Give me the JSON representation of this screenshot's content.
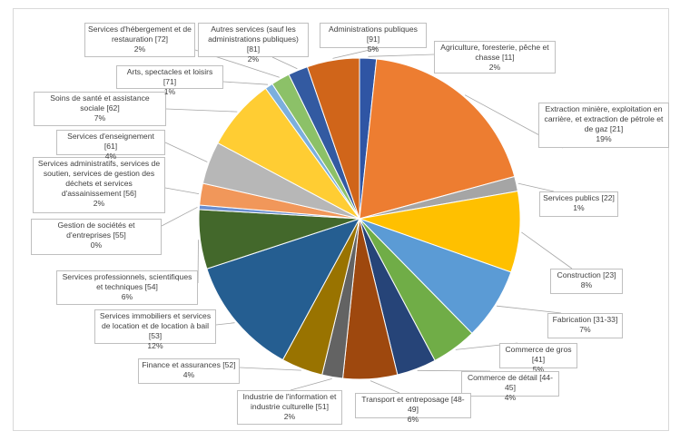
{
  "chart_data": {
    "type": "pie",
    "title": "",
    "start_angle_deg": 0,
    "slices": [
      {
        "name": "Agriculture, foresterie, pêche et chasse [11]",
        "value": 2,
        "pct_label": "2%",
        "color": "#2f55a4"
      },
      {
        "name": "Extraction minière, exploitation en carrière, et extraction de pétrole et de gaz [21]",
        "value": 19,
        "pct_label": "19%",
        "color": "#ed7d31"
      },
      {
        "name": "Services publics [22]",
        "value": 1,
        "pct_label": "1%",
        "color": "#a5a5a5"
      },
      {
        "name": "Construction [23]",
        "value": 8,
        "pct_label": "8%",
        "color": "#ffc000"
      },
      {
        "name": "Fabrication [31-33]",
        "value": 7,
        "pct_label": "7%",
        "color": "#5b9bd5"
      },
      {
        "name": "Commerce de gros [41]",
        "value": 5,
        "pct_label": "5%",
        "color": "#70ad47"
      },
      {
        "name": "Commerce de détail [44-45]",
        "value": 4,
        "pct_label": "4%",
        "color": "#264478"
      },
      {
        "name": "Transport et entreposage [48-49]",
        "value": 6,
        "pct_label": "6%",
        "color": "#9e480e"
      },
      {
        "name": "Industrie de l'information et industrie culturelle [51]",
        "value": 2,
        "pct_label": "2%",
        "color": "#636363"
      },
      {
        "name": "Finance et assurances [52]",
        "value": 4,
        "pct_label": "4%",
        "color": "#997300"
      },
      {
        "name": "Services immobiliers et services de location et de location à bail [53]",
        "value": 12,
        "pct_label": "12%",
        "color": "#255e91"
      },
      {
        "name": "Services professionnels, scientifiques et techniques [54]",
        "value": 6,
        "pct_label": "6%",
        "color": "#43682b"
      },
      {
        "name": "Gestion de sociétés et d'entreprises [55]",
        "value": 0,
        "pct_label": "0%",
        "color": "#698ed0"
      },
      {
        "name": "Services administratifs, services de soutien, services de gestion des déchets et services d'assainissement [56]",
        "value": 2,
        "pct_label": "2%",
        "color": "#f1975a"
      },
      {
        "name": "Services d'enseignement [61]",
        "value": 4,
        "pct_label": "4%",
        "color": "#b7b7b7"
      },
      {
        "name": "Soins de santé et assistance sociale [62]",
        "value": 7,
        "pct_label": "7%",
        "color": "#ffcd33"
      },
      {
        "name": "Arts, spectacles et loisirs [71]",
        "value": 1,
        "pct_label": "1%",
        "color": "#7cafdd"
      },
      {
        "name": "Services d'hébergement et de restauration [72]",
        "value": 2,
        "pct_label": "2%",
        "color": "#8cc168"
      },
      {
        "name": "Autres services (sauf les administrations publiques) [81]",
        "value": 2,
        "pct_label": "2%",
        "color": "#335aa1"
      },
      {
        "name": "Administrations publiques [91]",
        "value": 5,
        "pct_label": "5%",
        "color": "#d0651a"
      }
    ]
  }
}
